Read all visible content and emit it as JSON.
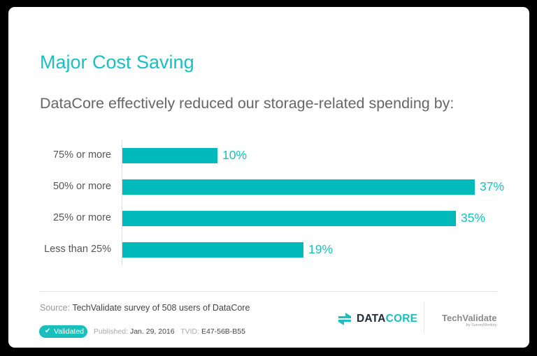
{
  "card": {
    "title": "Major Cost Saving",
    "question": "DataCore effectively reduced our storage-related spending by:"
  },
  "chart_data": {
    "type": "bar",
    "orientation": "horizontal",
    "title": "Major Cost Saving",
    "subtitle": "DataCore effectively reduced our storage-related spending by:",
    "categories": [
      "75% or more",
      "50% or more",
      "25% or more",
      "Less than 25%"
    ],
    "values": [
      10,
      37,
      35,
      19
    ],
    "value_labels": [
      "10%",
      "37%",
      "35%",
      "19%"
    ],
    "unit": "%",
    "xlabel": "",
    "ylabel": "",
    "xlim": [
      0,
      37
    ],
    "grid": false,
    "legend": null,
    "bar_color": "#00b9bb",
    "label_color": "#1bbfc0"
  },
  "footer": {
    "source_label": "Source:",
    "source_text": "TechValidate survey of 508 users of DataCore",
    "badge_label": "Validated",
    "published_label": "Published:",
    "published_date": "Jan. 29, 2016",
    "tvid_label": "TVID:",
    "tvid": "E47-56B-B55",
    "vendor_logo_part1": "DATA",
    "vendor_logo_part2": "CORE",
    "tv_logo_name": "TechValidate",
    "tv_logo_by": "by SurveyMonkey"
  },
  "colors": {
    "accent": "#1bbfc0",
    "bar": "#00b9bb",
    "logo_dark": "#1d2a33"
  }
}
